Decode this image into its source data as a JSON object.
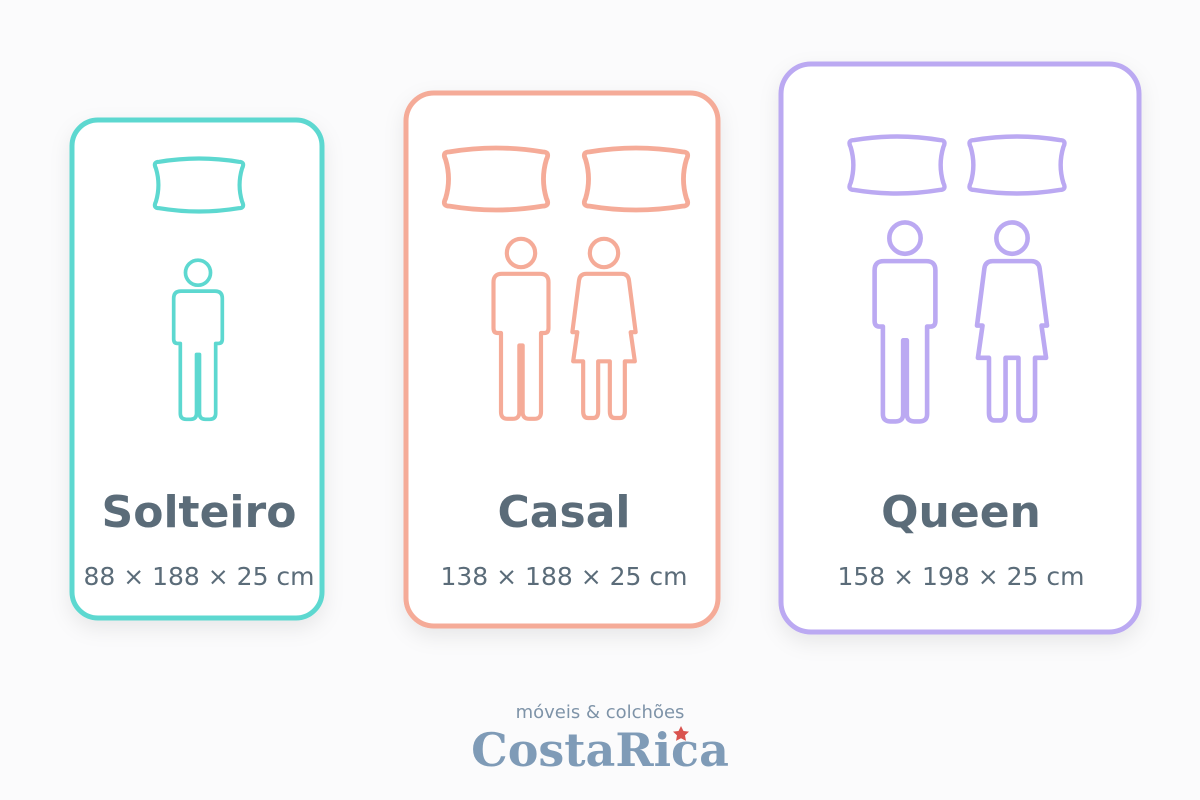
{
  "cards": [
    {
      "name": "Solteiro",
      "dimensions": "88 × 188 × 25 cm"
    },
    {
      "name": "Casal",
      "dimensions": "138 × 188 × 25 cm"
    },
    {
      "name": "Queen",
      "dimensions": "158 × 198 × 25 cm"
    }
  ],
  "logo": {
    "tagline": "móveis & colchões",
    "brand": "CostaRica"
  }
}
